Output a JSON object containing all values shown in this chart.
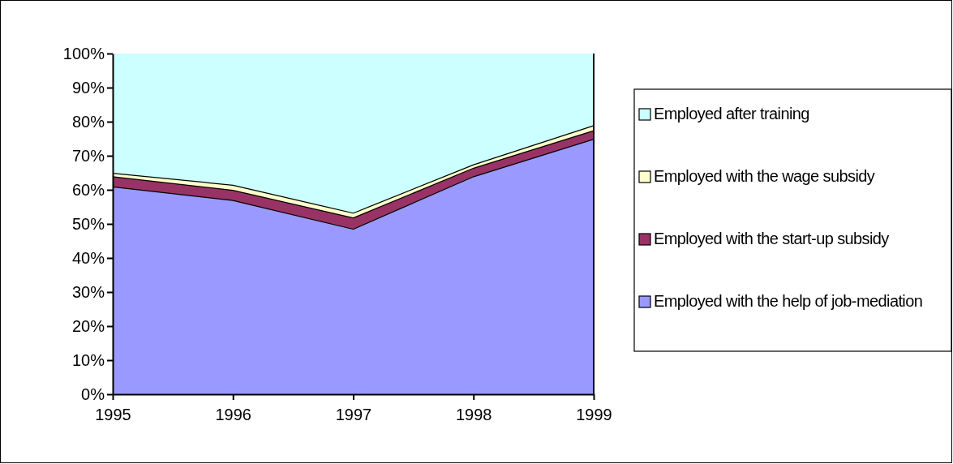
{
  "chart_data": {
    "type": "area",
    "stacked": true,
    "categories": [
      "1995",
      "1996",
      "1997",
      "1998",
      "1999"
    ],
    "series": [
      {
        "name": "Employed with the help of job-mediation",
        "color": "#9999ff",
        "values": [
          61,
          57,
          48.6,
          64,
          75
        ]
      },
      {
        "name": "Employed with the start-up subsidy",
        "color": "#993366",
        "values": [
          3,
          3,
          3.3,
          2.5,
          2.5
        ]
      },
      {
        "name": "Employed with the wage subsidy",
        "color": "#ffffcc",
        "values": [
          1,
          1.5,
          1.4,
          1,
          1.5
        ]
      },
      {
        "name": "Employed after training",
        "color": "#ccffff",
        "values": [
          35,
          38.5,
          46.7,
          32.5,
          21
        ]
      }
    ],
    "ylim": [
      0,
      100
    ],
    "yticks": [
      {
        "value": 0,
        "label": "0%"
      },
      {
        "value": 10,
        "label": "10%"
      },
      {
        "value": 20,
        "label": "20%"
      },
      {
        "value": 30,
        "label": "30%"
      },
      {
        "value": 40,
        "label": "40%"
      },
      {
        "value": 50,
        "label": "50%"
      },
      {
        "value": 60,
        "label": "60%"
      },
      {
        "value": 70,
        "label": "70%"
      },
      {
        "value": 80,
        "label": "80%"
      },
      {
        "value": 90,
        "label": "90%"
      },
      {
        "value": 100,
        "label": "100%"
      }
    ],
    "grid": false,
    "legend": "right"
  }
}
